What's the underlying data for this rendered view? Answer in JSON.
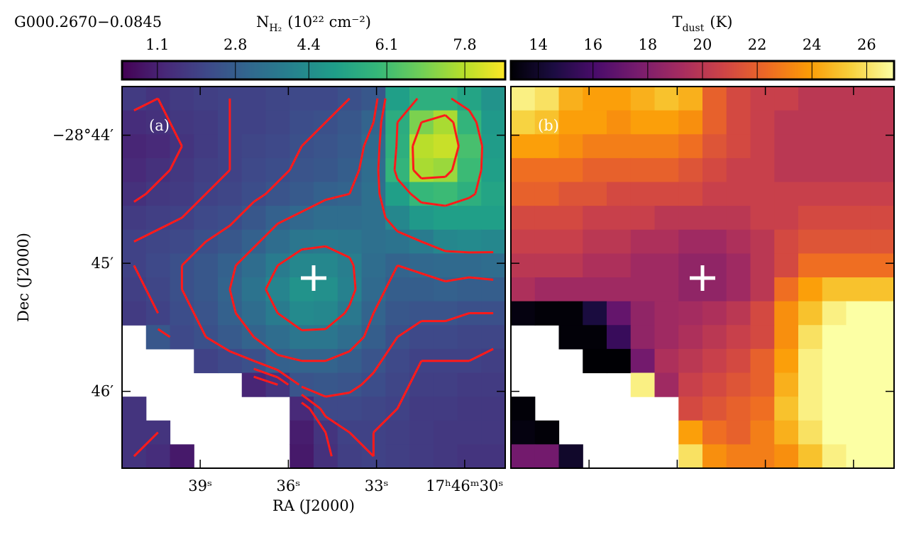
{
  "chart_data": [
    {
      "type": "heatmap",
      "title": "G000.2670−0.0845",
      "panel_label": "(a)",
      "colorbar_symbol": "N",
      "colorbar_subscript": "H₂",
      "colorbar_units": "(10²² cm⁻²)",
      "colormap": "viridis",
      "clim": [
        0.33,
        8.68
      ],
      "cticks": [
        1.1,
        2.8,
        4.4,
        6.1,
        7.8
      ],
      "x_label": "RA (J2000)",
      "y_label": "Dec (J2000)",
      "xlim": [
        41.66,
        28.62
      ],
      "xticks": [
        {
          "value": 39,
          "label": "39ˢ"
        },
        {
          "value": 36,
          "label": "36ˢ"
        },
        {
          "value": 33,
          "label": "33ˢ"
        },
        {
          "value": 30,
          "label": "17ʰ46ᵐ30ˢ"
        }
      ],
      "ylim": [
        46.6,
        43.62
      ],
      "yticks": [
        {
          "value": 44,
          "label": "−28°44′"
        },
        {
          "value": 45,
          "label": "45′"
        },
        {
          "value": 46,
          "label": "46′"
        }
      ],
      "contour_levels": [
        1.6,
        2.0,
        2.4,
        3.0,
        3.8,
        5.5,
        7.0
      ],
      "contour_color": "#ff1a1a",
      "values": [
        [
          1.8,
          1.6,
          1.8,
          1.9,
          2.0,
          2.0,
          2.1,
          2.2,
          2.2,
          2.4,
          2.6,
          5.0,
          5.6,
          5.6,
          5.2,
          4.6
        ],
        [
          1.4,
          1.5,
          1.7,
          1.8,
          2.0,
          2.0,
          2.1,
          2.3,
          2.4,
          2.6,
          3.0,
          5.5,
          7.0,
          7.6,
          5.8,
          4.8
        ],
        [
          1.2,
          1.3,
          1.6,
          1.8,
          2.0,
          2.1,
          2.2,
          2.4,
          2.5,
          2.7,
          3.2,
          5.6,
          7.8,
          8.0,
          6.2,
          4.9
        ],
        [
          1.3,
          1.5,
          1.7,
          1.9,
          2.0,
          2.2,
          2.3,
          2.5,
          2.6,
          2.8,
          3.3,
          5.8,
          7.6,
          7.4,
          6.0,
          5.0
        ],
        [
          1.5,
          1.7,
          1.8,
          2.0,
          2.1,
          2.3,
          2.5,
          2.7,
          2.9,
          3.0,
          3.4,
          5.0,
          5.9,
          6.0,
          5.6,
          5.2
        ],
        [
          1.8,
          1.9,
          2.0,
          2.2,
          2.3,
          2.6,
          2.9,
          3.1,
          3.3,
          3.3,
          3.4,
          4.2,
          4.8,
          5.0,
          5.0,
          5.0
        ],
        [
          2.0,
          2.1,
          2.2,
          2.4,
          2.6,
          2.9,
          3.3,
          3.6,
          3.7,
          3.6,
          3.4,
          3.5,
          3.8,
          4.2,
          4.3,
          4.2
        ],
        [
          2.0,
          2.2,
          2.4,
          2.6,
          2.9,
          3.3,
          3.8,
          4.2,
          4.2,
          3.9,
          3.3,
          3.0,
          3.1,
          3.2,
          3.2,
          3.3
        ],
        [
          1.9,
          2.1,
          2.4,
          2.6,
          3.0,
          3.5,
          4.1,
          4.6,
          4.5,
          4.0,
          3.2,
          2.8,
          2.8,
          2.9,
          2.8,
          2.8
        ],
        [
          1.8,
          2.0,
          2.3,
          2.5,
          2.9,
          3.3,
          3.8,
          4.3,
          4.2,
          3.7,
          3.0,
          2.6,
          2.5,
          2.5,
          2.4,
          2.4
        ],
        [
          null,
          2.6,
          2.2,
          2.4,
          2.7,
          3.0,
          3.3,
          3.6,
          3.6,
          3.3,
          2.8,
          2.4,
          2.2,
          2.2,
          2.1,
          2.1
        ],
        [
          null,
          null,
          null,
          2.0,
          2.2,
          2.4,
          2.9,
          3.0,
          3.0,
          2.8,
          2.5,
          2.2,
          2.0,
          2.0,
          2.0,
          1.9
        ],
        [
          null,
          null,
          null,
          null,
          null,
          1.2,
          1.6,
          2.5,
          2.6,
          2.5,
          2.3,
          2.1,
          1.9,
          1.9,
          1.8,
          1.8
        ],
        [
          1.6,
          null,
          null,
          null,
          null,
          null,
          null,
          1.3,
          2.2,
          2.2,
          2.1,
          2.0,
          1.8,
          1.8,
          1.7,
          1.7
        ],
        [
          1.6,
          1.6,
          null,
          null,
          null,
          null,
          null,
          1.0,
          1.6,
          2.0,
          2.0,
          1.9,
          1.8,
          1.7,
          1.7,
          1.7
        ],
        [
          1.6,
          1.4,
          0.9,
          null,
          null,
          null,
          null,
          0.9,
          1.5,
          1.9,
          2.0,
          1.9,
          1.8,
          1.7,
          1.6,
          1.6
        ]
      ]
    },
    {
      "type": "heatmap",
      "panel_label": "(b)",
      "colorbar_symbol": "T",
      "colorbar_subscript": "dust",
      "colorbar_units": "(K)",
      "colormap": "inferno",
      "clim": [
        13.0,
        27.0
      ],
      "cticks": [
        14,
        16,
        18,
        20,
        22,
        24,
        26
      ],
      "values": [
        [
          26.5,
          26,
          24.5,
          24,
          24,
          24.5,
          25,
          24.5,
          22,
          21,
          20.5,
          20.5,
          20,
          20,
          20,
          20
        ],
        [
          25.5,
          25,
          24,
          24,
          23.5,
          24,
          24,
          23.5,
          22,
          21,
          20.5,
          20,
          20,
          20,
          20,
          20
        ],
        [
          24,
          24,
          23.5,
          23,
          23,
          23,
          23,
          22.5,
          21.5,
          21,
          20.5,
          20,
          20,
          20,
          20,
          20
        ],
        [
          22.5,
          22.5,
          22.5,
          22,
          22,
          22,
          22,
          21.5,
          21,
          20.5,
          20.5,
          20,
          20,
          20,
          20,
          20
        ],
        [
          22,
          22,
          21.5,
          21.5,
          21,
          21,
          21,
          21,
          20.5,
          20.5,
          20.5,
          20.5,
          20.5,
          20.5,
          20.5,
          20.5
        ],
        [
          21,
          21,
          21,
          20.5,
          20.5,
          20.5,
          20,
          20,
          20,
          20,
          20.5,
          20.5,
          21,
          21,
          21,
          21
        ],
        [
          20.5,
          20.5,
          20.5,
          20,
          20,
          19.5,
          19.5,
          19,
          19,
          19.5,
          20,
          21,
          21.5,
          21.5,
          21.5,
          21.5
        ],
        [
          20,
          20,
          20,
          19.5,
          19.5,
          19,
          19,
          18.5,
          18.5,
          19,
          20,
          21,
          22.5,
          22.5,
          22.5,
          22.5
        ],
        [
          19.5,
          19,
          19,
          19,
          19,
          19,
          19,
          18.5,
          18.5,
          19,
          20,
          22.5,
          24,
          25,
          25,
          25
        ],
        [
          13.3,
          13.1,
          13.1,
          14.5,
          17,
          18.5,
          19,
          19.2,
          19.5,
          20,
          21,
          23.5,
          25,
          26.5,
          27,
          27
        ],
        [
          null,
          null,
          13.1,
          13.1,
          15.5,
          18.5,
          19,
          19.5,
          20,
          20.5,
          21,
          23.5,
          26,
          27,
          27,
          27
        ],
        [
          null,
          null,
          null,
          13.0,
          13.0,
          17.5,
          19.5,
          20,
          20.5,
          21,
          22,
          24,
          26.5,
          27,
          27,
          27
        ],
        [
          null,
          null,
          null,
          null,
          null,
          26.5,
          19,
          20.5,
          21,
          21.5,
          22,
          24.5,
          26.5,
          27,
          27,
          27
        ],
        [
          13.1,
          null,
          null,
          null,
          null,
          null,
          null,
          21,
          21.5,
          22,
          22.5,
          25,
          26.5,
          27,
          27,
          27
        ],
        [
          13.3,
          13.1,
          null,
          null,
          null,
          null,
          null,
          24,
          22.5,
          22,
          23,
          24.5,
          26,
          27,
          27,
          27
        ],
        [
          17.5,
          17.5,
          14,
          null,
          null,
          null,
          null,
          26,
          23.5,
          23,
          23,
          23.5,
          25,
          26.5,
          27,
          27
        ]
      ]
    }
  ]
}
